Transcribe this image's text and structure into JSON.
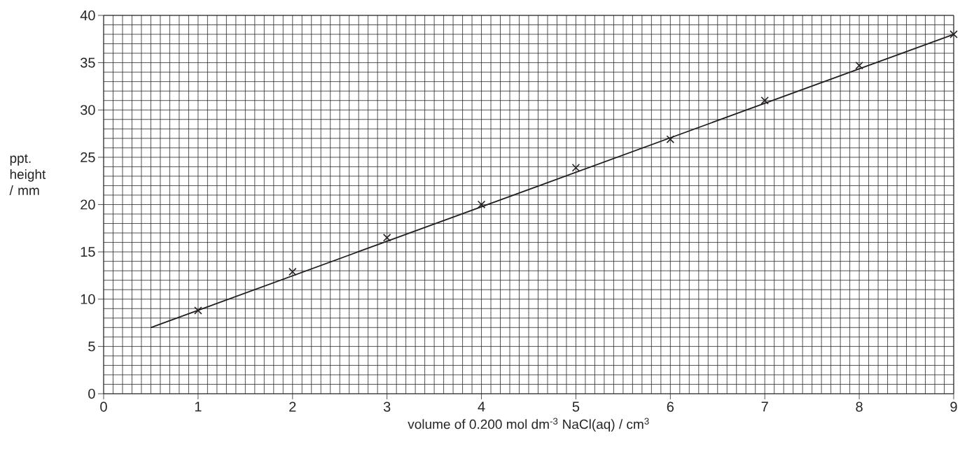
{
  "chart_data": {
    "type": "scatter",
    "xlabel": "volume of 0.200 mol dm$^{-3}$ NaCl(aq) / cm$^{3}$",
    "ylabel": "ppt. height / mm",
    "xlim": [
      0,
      9
    ],
    "ylim": [
      0,
      40
    ],
    "xticks": [
      0,
      1,
      2,
      3,
      4,
      5,
      6,
      7,
      8,
      9
    ],
    "yticks": [
      0,
      5,
      10,
      15,
      20,
      25,
      30,
      35,
      40
    ],
    "grid": true,
    "marker": "cross",
    "series": [
      {
        "color": "#231f20",
        "x": [
          1,
          2,
          3,
          4,
          5,
          6,
          7,
          8,
          9
        ],
        "values": [
          8.8,
          12.9,
          16.5,
          20.0,
          23.9,
          26.9,
          31.0,
          34.7,
          38.0
        ]
      },
      {
        "type": "line",
        "marker": "none",
        "color": "#231f20",
        "x": [
          0.5,
          9
        ],
        "values": [
          7.0,
          38.0
        ]
      }
    ]
  }
}
